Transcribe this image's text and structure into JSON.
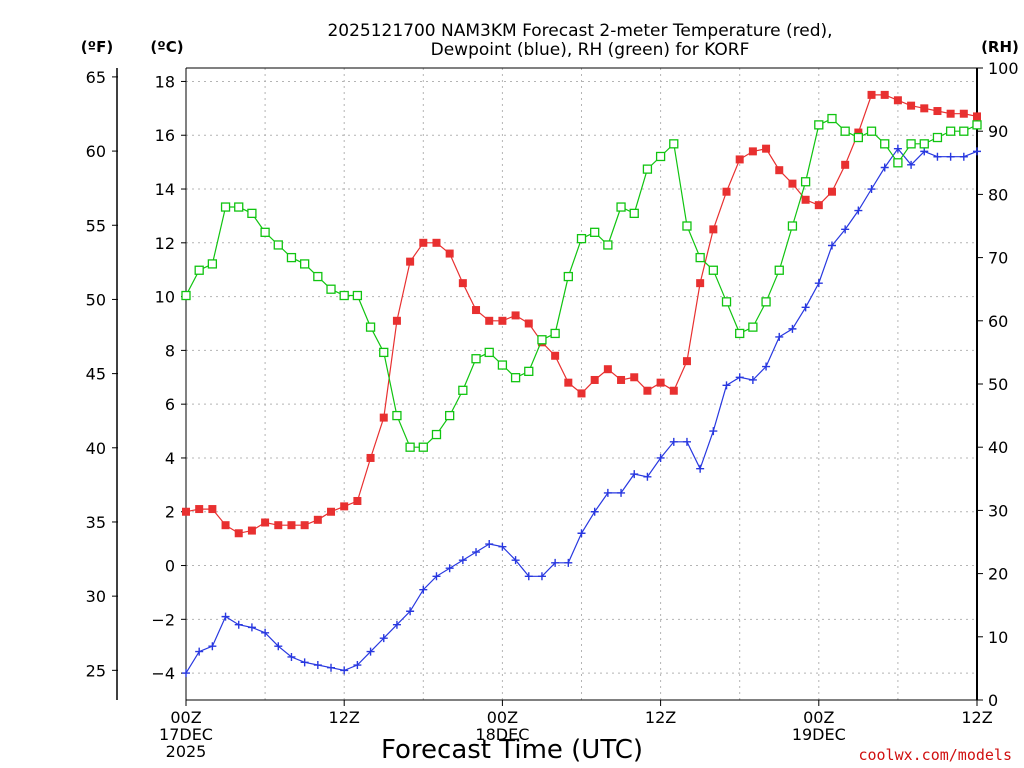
{
  "chart_data": {
    "type": "line",
    "title_line1": "2025121700 NAM3KM Forecast 2-meter Temperature (red),",
    "title_line2": "Dewpoint (blue), RH (green) for KORF",
    "xlabel": "Forecast Time (UTC)",
    "credit": "coolwx.com/models",
    "y_left_outer": {
      "unit": "(ºF)",
      "ticks": [
        "25",
        "30",
        "35",
        "40",
        "45",
        "50",
        "55",
        "60",
        "65"
      ],
      "range": [
        23.0,
        65.6
      ]
    },
    "y_left_inner": {
      "unit": "(ºC)",
      "ticks": [
        "−4",
        "−2",
        "0",
        "2",
        "4",
        "6",
        "8",
        "10",
        "12",
        "14",
        "16",
        "18"
      ],
      "range": [
        -5,
        18.5
      ]
    },
    "y_right": {
      "unit": "(RH)",
      "ticks": [
        "0",
        "10",
        "20",
        "30",
        "40",
        "50",
        "60",
        "70",
        "80",
        "90",
        "100"
      ],
      "range": [
        0,
        100
      ]
    },
    "x_range_hours": [
      0,
      60
    ],
    "x_ticks": [
      {
        "h": 0,
        "l1": "00Z",
        "l2": "17DEC",
        "l3": "2025"
      },
      {
        "h": 12,
        "l1": "12Z",
        "l2": "",
        "l3": ""
      },
      {
        "h": 24,
        "l1": "00Z",
        "l2": "18DEC",
        "l3": ""
      },
      {
        "h": 36,
        "l1": "12Z",
        "l2": "",
        "l3": ""
      },
      {
        "h": 48,
        "l1": "00Z",
        "l2": "19DEC",
        "l3": ""
      },
      {
        "h": 60,
        "l1": "12Z",
        "l2": "",
        "l3": ""
      }
    ],
    "grid": true,
    "x": [
      0,
      1,
      2,
      3,
      4,
      5,
      6,
      7,
      8,
      9,
      10,
      11,
      12,
      13,
      14,
      15,
      16,
      17,
      18,
      19,
      20,
      21,
      22,
      23,
      24,
      25,
      26,
      27,
      28,
      29,
      30,
      31,
      32,
      33,
      34,
      35,
      36,
      37,
      38,
      39,
      40,
      41,
      42,
      43,
      44,
      45,
      46,
      47,
      48,
      49,
      50,
      51,
      52,
      53,
      54,
      55,
      56,
      57,
      58,
      59,
      60
    ],
    "series": [
      {
        "name": "Temperature",
        "axis": "celsius",
        "color": "#e83030",
        "marker": "filled-square",
        "values": [
          2.0,
          2.1,
          2.1,
          1.5,
          1.2,
          1.3,
          1.6,
          1.5,
          1.5,
          1.5,
          1.7,
          2.0,
          2.2,
          2.4,
          4.0,
          5.5,
          9.1,
          11.3,
          12.0,
          12.0,
          11.6,
          10.5,
          9.5,
          9.1,
          9.1,
          9.3,
          9.0,
          8.3,
          7.8,
          6.8,
          6.4,
          6.9,
          7.3,
          6.9,
          7.0,
          6.5,
          6.8,
          6.5,
          7.6,
          10.5,
          12.5,
          13.9,
          15.1,
          15.4,
          15.5,
          14.7,
          14.2,
          13.6,
          13.4,
          13.9,
          14.9,
          16.1,
          17.5,
          17.5,
          17.3,
          17.1,
          17.0,
          16.9,
          16.8,
          16.8,
          16.7
        ]
      },
      {
        "name": "Dewpoint",
        "axis": "celsius",
        "color": "#2838e0",
        "marker": "plus",
        "values": [
          -4.0,
          -3.2,
          -3.0,
          -1.9,
          -2.2,
          -2.3,
          -2.5,
          -3.0,
          -3.4,
          -3.6,
          -3.7,
          -3.8,
          -3.9,
          -3.7,
          -3.2,
          -2.7,
          -2.2,
          -1.7,
          -0.9,
          -0.4,
          -0.1,
          0.2,
          0.5,
          0.8,
          0.7,
          0.2,
          -0.4,
          -0.4,
          0.1,
          0.1,
          1.2,
          2.0,
          2.7,
          2.7,
          3.4,
          3.3,
          4.0,
          4.6,
          4.6,
          3.6,
          5.0,
          6.7,
          7.0,
          6.9,
          7.4,
          8.5,
          8.8,
          9.6,
          10.5,
          11.9,
          12.5,
          13.2,
          14.0,
          14.8,
          15.5,
          14.9,
          15.4,
          15.2,
          15.2,
          15.2,
          15.4
        ]
      },
      {
        "name": "RH",
        "axis": "rh",
        "color": "#10c410",
        "marker": "open-square",
        "values": [
          64,
          68,
          69,
          78,
          78,
          77,
          74,
          72,
          70,
          69,
          67,
          65,
          64,
          64,
          59,
          55,
          45,
          40,
          40,
          42,
          45,
          49,
          54,
          55,
          53,
          51,
          52,
          57,
          58,
          67,
          73,
          74,
          72,
          78,
          77,
          84,
          86,
          88,
          75,
          70,
          68,
          63,
          58,
          59,
          63,
          68,
          75,
          82,
          91,
          92,
          90,
          89,
          90,
          88,
          85,
          88,
          88,
          89,
          90,
          90,
          91
        ]
      }
    ]
  }
}
